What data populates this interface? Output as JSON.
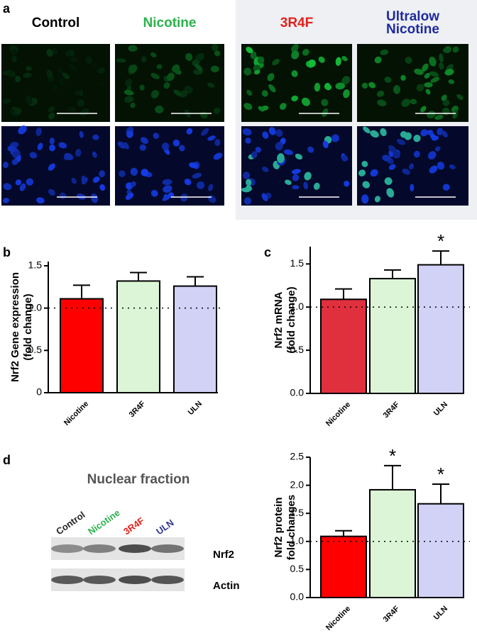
{
  "panel_labels": [
    "a",
    "b",
    "c",
    "d"
  ],
  "images": {
    "columns": [
      {
        "label": [
          "Control"
        ],
        "color": "#000000"
      },
      {
        "label": [
          "Nicotine"
        ],
        "color": "#2bb24c"
      },
      {
        "label": [
          "3R4F"
        ],
        "color": "#e3201b"
      },
      {
        "label": [
          "Ultralow",
          "Nicotine"
        ],
        "color": "#1f2a9c"
      }
    ]
  },
  "blot": {
    "title": "Nuclear fraction",
    "lanes": [
      {
        "label": "Control",
        "color": "#222222"
      },
      {
        "label": "Nicotine",
        "color": "#2bb24c"
      },
      {
        "label": "3R4F",
        "color": "#e3201b"
      },
      {
        "label": "ULN",
        "color": "#2e3590"
      }
    ],
    "bands": [
      "Nrf2",
      "Actin"
    ]
  },
  "chart_data": [
    {
      "type": "bar",
      "ylabel": [
        "Nrf2 Gene expression",
        "(fold change)"
      ],
      "categories": [
        "Nicotine",
        "3R4F",
        "ULN"
      ],
      "values": [
        1.11,
        1.32,
        1.26
      ],
      "errors": [
        0.16,
        0.1,
        0.11
      ],
      "colors": [
        "#ff0000",
        "#dcf5d6",
        "#d2d2f7"
      ],
      "ylim": [
        0,
        1.55
      ],
      "yticks": [
        0,
        0.5,
        {
          "value": 1,
          "label": "1.0"
        },
        1.5
      ],
      "reference_line": 1
    },
    {
      "type": "bar",
      "ylabel": [
        "Nrf2 mRNA",
        "(fold change)"
      ],
      "categories": [
        "Nicotine",
        "3R4F",
        "ULN"
      ],
      "values": [
        1.09,
        1.33,
        1.49
      ],
      "errors": [
        0.12,
        0.1,
        0.16
      ],
      "colors": [
        "#e0303e",
        "#dcf5d6",
        "#d2d2f7"
      ],
      "ylim": [
        0,
        1.7
      ],
      "yticks": [
        {
          "value": 0,
          "label": "0.0"
        },
        0.5,
        {
          "value": 1,
          "label": "1.0"
        },
        1.5
      ],
      "reference_line": 1,
      "annotations": [
        {
          "text": "*",
          "category": "ULN"
        }
      ]
    },
    {
      "type": "bar",
      "ylabel": [
        "Nrf2 protein",
        "fold changes"
      ],
      "categories": [
        "Nicotine",
        "3R4F",
        "ULN"
      ],
      "values": [
        1.09,
        1.92,
        1.67
      ],
      "errors": [
        0.1,
        0.43,
        0.35
      ],
      "colors": [
        "#ff0000",
        "#dcf5d6",
        "#d2d2f7"
      ],
      "ylim": [
        0,
        2.5
      ],
      "yticks": [
        {
          "value": 0,
          "label": "0.0"
        },
        0.5,
        {
          "value": 1,
          "label": "1.0"
        },
        1.5,
        {
          "value": 2,
          "label": "2.0"
        },
        2.5
      ],
      "reference_line": 1,
      "annotations": [
        {
          "text": "*",
          "category": "3R4F"
        },
        {
          "text": "*",
          "category": "ULN"
        }
      ]
    }
  ]
}
